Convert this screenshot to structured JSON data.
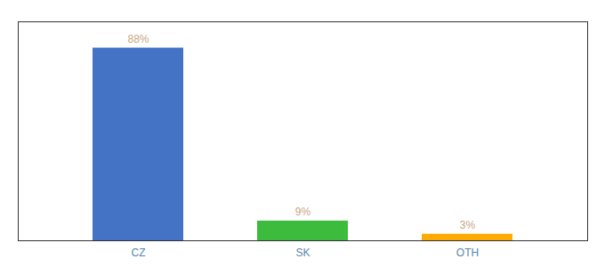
{
  "chart_data": {
    "type": "bar",
    "categories": [
      "CZ",
      "SK",
      "OTH"
    ],
    "values": [
      88,
      9,
      3
    ],
    "value_labels": [
      "88%",
      "9%",
      "3%"
    ],
    "colors": [
      "#4472c4",
      "#3dbb3d",
      "#ffaa00"
    ],
    "ylim": [
      0,
      100
    ],
    "data_labels": true,
    "tick_labels": "x"
  }
}
